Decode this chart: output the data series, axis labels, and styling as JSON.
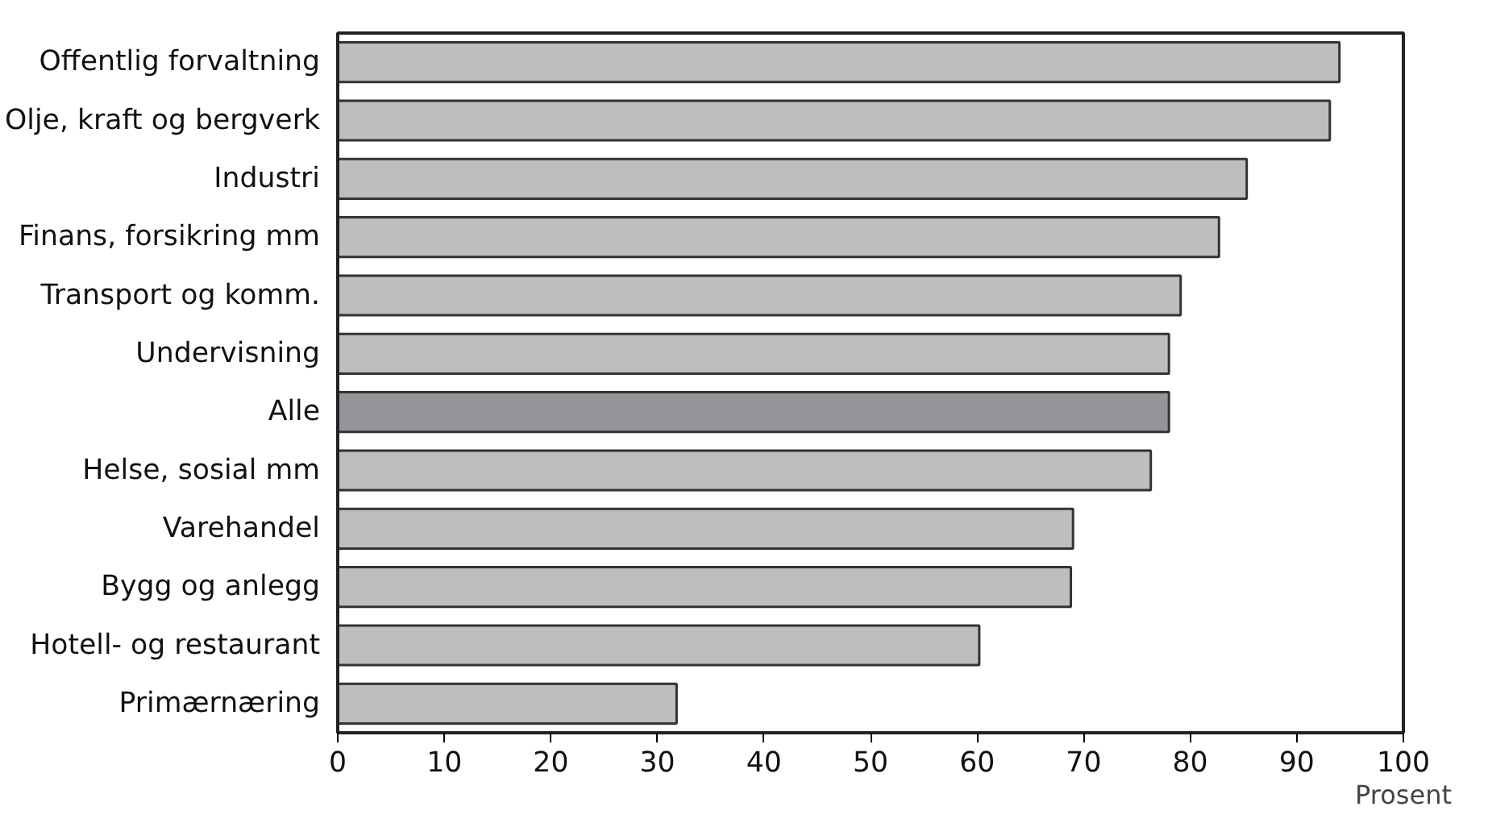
{
  "chart_data": {
    "type": "bar",
    "orientation": "horizontal",
    "xlabel": "Prosent",
    "categories": [
      "Offentlig forvaltning",
      "Olje, kraft og bergverk",
      "Industri",
      "Finans, forsikring mm",
      "Transport og komm.",
      "Undervisning",
      "Alle",
      "Helse, sosial mm",
      "Varehandel",
      "Bygg og anlegg",
      "Hotell- og restaurant",
      "Primærnæring"
    ],
    "values": [
      94.0,
      93.1,
      85.3,
      82.7,
      79.1,
      78.0,
      78.0,
      76.3,
      69.0,
      68.8,
      60.2,
      31.8
    ],
    "colors": [
      "#bdbec0",
      "#bdbec0",
      "#bdbec0",
      "#bdbec0",
      "#bdbec0",
      "#bdbec0",
      "#939598",
      "#bdbec0",
      "#bdbec0",
      "#bdbec0",
      "#bdbec0",
      "#bdbec0"
    ],
    "xlim": [
      0,
      100
    ],
    "xticks": [
      0,
      10,
      20,
      30,
      40,
      50,
      60,
      70,
      80,
      90,
      100
    ],
    "grid": false
  }
}
